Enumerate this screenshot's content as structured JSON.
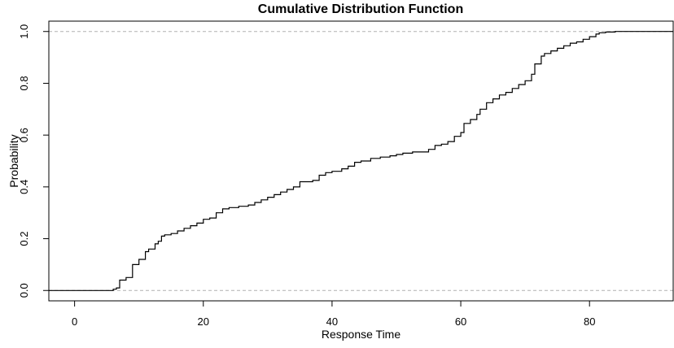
{
  "chart_data": {
    "type": "line",
    "subtype": "step",
    "title": "Cumulative Distribution Function",
    "xlabel": "Response Time",
    "ylabel": "Probability",
    "xlim": [
      -4,
      93
    ],
    "ylim": [
      -0.04,
      1.04
    ],
    "xticks": [
      0,
      20,
      40,
      60,
      80
    ],
    "yticks": [
      0.0,
      0.2,
      0.4,
      0.6,
      0.8,
      1.0
    ],
    "ytick_labels": [
      "0.0",
      "0.2",
      "0.4",
      "0.6",
      "0.8",
      "1.0"
    ],
    "reference_lines": [
      0.0,
      1.0
    ],
    "reference_line_color": "#b0b0b0",
    "line_color": "#000000",
    "grid": false,
    "legend": "none",
    "series": [
      {
        "x": [
          -4,
          6.0,
          6.5,
          7.0,
          8.0,
          9.0,
          10.0,
          11.0,
          11.5,
          12.5,
          13.0,
          13.5,
          14.0,
          15.0,
          16.0,
          17.0,
          18.0,
          19.0,
          20.0,
          21.0,
          22.0,
          23.0,
          24.0,
          25.5,
          27.0,
          28.0,
          29.0,
          30.0,
          31.0,
          32.0,
          33.0,
          34.0,
          35.0,
          37.0,
          38.0,
          39.0,
          40.0,
          41.5,
          42.5,
          43.5,
          44.5,
          46.0,
          47.5,
          49.0,
          50.0,
          51.0,
          52.5,
          55.0,
          56.0,
          57.0,
          58.0,
          59.0,
          60.0,
          60.5,
          61.5,
          62.5,
          63.0,
          64.0,
          65.0,
          66.0,
          67.0,
          68.0,
          69.0,
          70.0,
          71.0,
          71.5,
          72.5,
          73.0,
          74.0,
          75.0,
          76.0,
          77.0,
          78.0,
          79.0,
          80.0,
          81.0,
          81.5,
          82.5,
          84.0,
          93
        ],
        "y": [
          0.0,
          0.005,
          0.01,
          0.04,
          0.05,
          0.1,
          0.12,
          0.15,
          0.16,
          0.18,
          0.19,
          0.21,
          0.215,
          0.22,
          0.23,
          0.24,
          0.25,
          0.26,
          0.275,
          0.28,
          0.3,
          0.315,
          0.32,
          0.325,
          0.33,
          0.34,
          0.35,
          0.36,
          0.37,
          0.38,
          0.39,
          0.4,
          0.42,
          0.425,
          0.445,
          0.455,
          0.46,
          0.47,
          0.48,
          0.495,
          0.5,
          0.51,
          0.515,
          0.52,
          0.525,
          0.53,
          0.535,
          0.545,
          0.56,
          0.565,
          0.575,
          0.595,
          0.61,
          0.645,
          0.66,
          0.68,
          0.7,
          0.725,
          0.74,
          0.755,
          0.765,
          0.78,
          0.795,
          0.81,
          0.835,
          0.875,
          0.905,
          0.915,
          0.925,
          0.935,
          0.945,
          0.955,
          0.96,
          0.97,
          0.98,
          0.99,
          0.995,
          0.998,
          1.0,
          1.0
        ]
      }
    ]
  }
}
